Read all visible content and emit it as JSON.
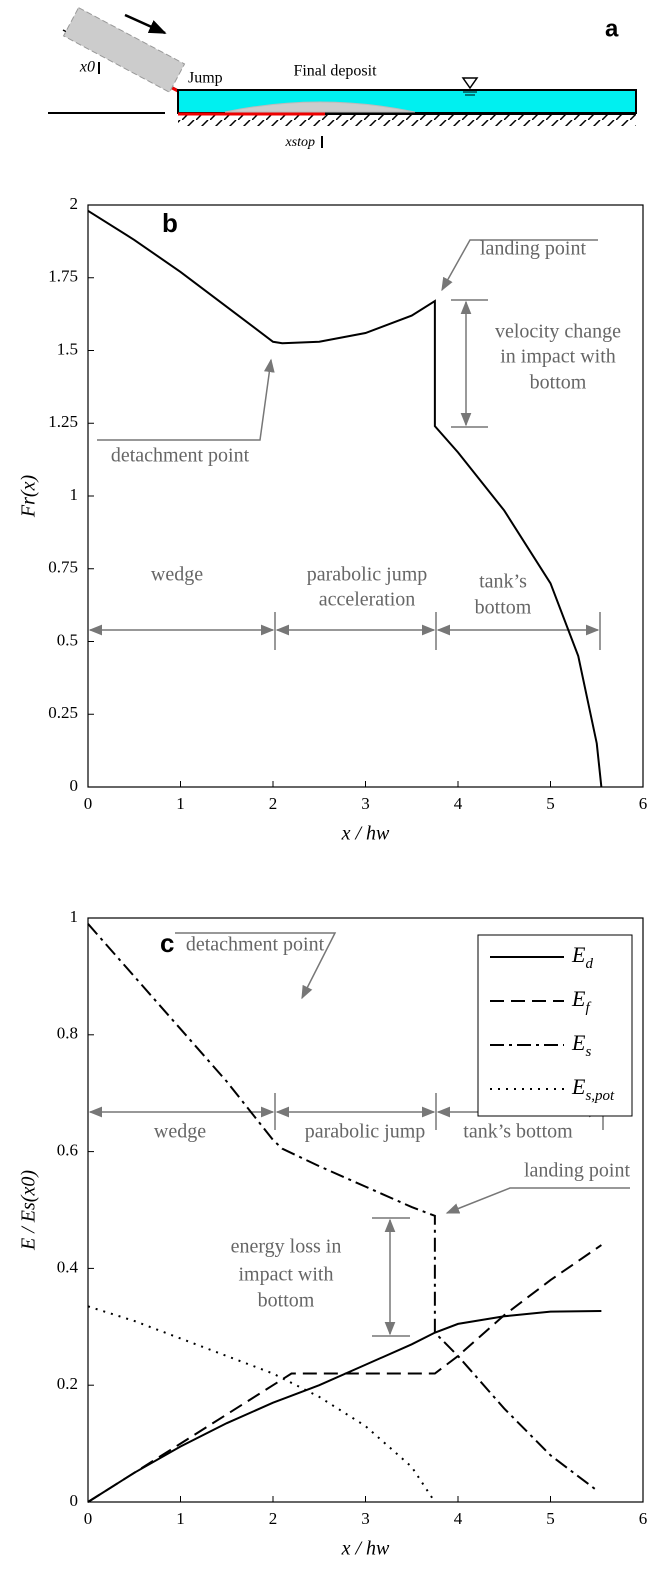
{
  "panel_a": {
    "label": "a",
    "x0": "x0",
    "jump": "Jump",
    "final_deposit": "Final deposit",
    "xstop": "xstop"
  },
  "chart_data": [
    {
      "type": "line",
      "panel_label": "b",
      "x_label": "x / hw",
      "y_label": "Fr(x)",
      "xlim": [
        0,
        6
      ],
      "ylim": [
        0,
        2
      ],
      "xticks": [
        0,
        1,
        2,
        3,
        4,
        5,
        6
      ],
      "yticks": [
        0,
        0.25,
        0.5,
        0.75,
        1,
        1.25,
        1.5,
        1.75,
        2
      ],
      "series": [
        {
          "color": "#000000",
          "dash": "solid",
          "x": [
            0,
            0.5,
            1,
            1.5,
            2,
            2.1,
            2.5,
            3,
            3.5,
            3.75,
            3.75,
            4,
            4.5,
            5,
            5.3,
            5.5,
            5.55
          ],
          "values": [
            1.98,
            1.88,
            1.77,
            1.65,
            1.53,
            1.525,
            1.53,
            1.56,
            1.62,
            1.67,
            1.24,
            1.15,
            0.95,
            0.7,
            0.45,
            0.15,
            0
          ]
        }
      ],
      "annotations": {
        "landing_point": "landing point",
        "velocity_1": "velocity change",
        "velocity_2": "in  impact with",
        "velocity_3": "bottom",
        "detachment_point": "detachment point",
        "wedge": "wedge",
        "parabolic_1": "parabolic jump",
        "parabolic_2": "acceleration",
        "tank_1": "tank’s",
        "tank_2": "bottom"
      }
    },
    {
      "type": "line",
      "panel_label": "c",
      "x_label": "x / hw",
      "y_label": "E / Es(x0)",
      "xlim": [
        0,
        6
      ],
      "ylim": [
        0,
        1
      ],
      "xticks": [
        0,
        1,
        2,
        3,
        4,
        5,
        6
      ],
      "yticks": [
        0,
        0.2,
        0.4,
        0.6,
        0.8,
        1
      ],
      "legend": "upper right",
      "series": [
        {
          "name": "Ed",
          "color": "#000000",
          "dash": "solid",
          "x": [
            0,
            0.5,
            1,
            1.5,
            2,
            2.5,
            3,
            3.5,
            3.75,
            4,
            4.5,
            5,
            5.55
          ],
          "values": [
            0,
            0.05,
            0.095,
            0.135,
            0.17,
            0.2,
            0.235,
            0.27,
            0.29,
            0.305,
            0.318,
            0.326,
            0.327
          ]
        },
        {
          "name": "Ef",
          "color": "#000000",
          "dash": "dashed",
          "x": [
            0,
            0.5,
            1,
            1.5,
            2,
            2.2,
            3,
            3.75,
            4,
            4.5,
            5,
            5.55
          ],
          "values": [
            0,
            0.05,
            0.1,
            0.15,
            0.2,
            0.22,
            0.22,
            0.22,
            0.25,
            0.32,
            0.38,
            0.44
          ]
        },
        {
          "name": "Es",
          "color": "#000000",
          "dash": "dashdot",
          "x": [
            0,
            0.5,
            1,
            1.5,
            2,
            2.1,
            2.5,
            3,
            3.5,
            3.75,
            3.75,
            4,
            4.5,
            5,
            5.5
          ],
          "values": [
            0.99,
            0.9,
            0.81,
            0.72,
            0.62,
            0.605,
            0.575,
            0.54,
            0.505,
            0.49,
            0.29,
            0.25,
            0.16,
            0.08,
            0.02
          ]
        },
        {
          "name": "Es,pot",
          "color": "#000000",
          "dash": "dotted",
          "x": [
            0,
            0.5,
            1,
            1.5,
            2,
            2.5,
            3,
            3.5,
            3.75
          ],
          "values": [
            0.335,
            0.31,
            0.28,
            0.25,
            0.22,
            0.18,
            0.13,
            0.06,
            0
          ]
        }
      ],
      "annotations": {
        "detachment_point": "detachment point",
        "wedge": "wedge",
        "parabolic": "parabolic jump",
        "tank": "tank’s bottom",
        "landing_point": "landing point",
        "energy_1": "energy loss in",
        "energy_2": "impact with",
        "energy_3": "bottom"
      }
    }
  ]
}
